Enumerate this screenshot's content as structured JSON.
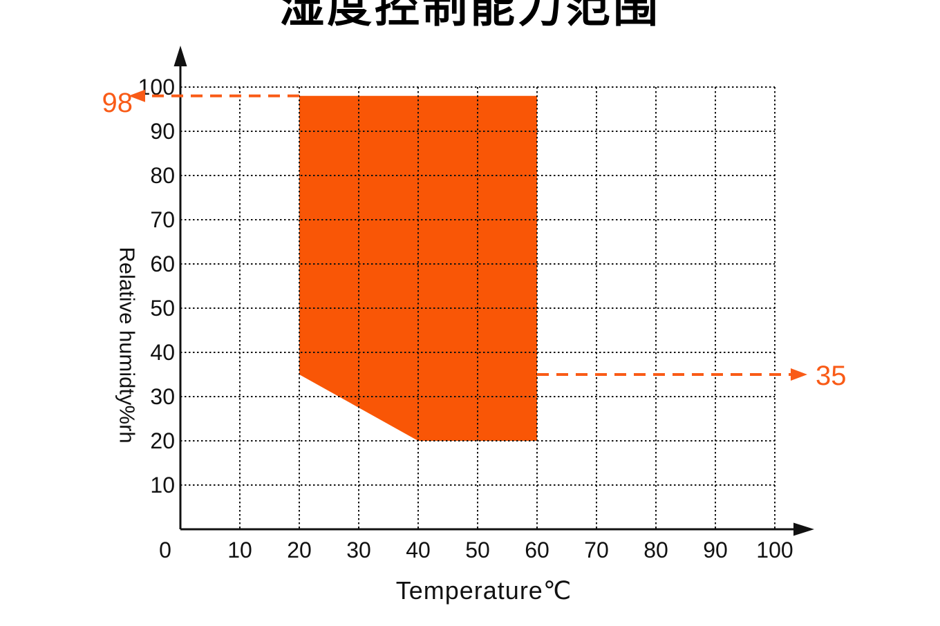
{
  "title": "湿度控制能力范围",
  "chart_data": {
    "type": "area",
    "title": "湿度控制能力范围",
    "xlabel": "Temperature℃",
    "ylabel": "Relative humidty%rh",
    "xlim": [
      0,
      100
    ],
    "ylim": [
      0,
      100
    ],
    "x_ticks": [
      0,
      10,
      20,
      30,
      40,
      50,
      60,
      70,
      80,
      90,
      100
    ],
    "y_ticks": [
      10,
      20,
      30,
      40,
      50,
      60,
      70,
      80,
      90,
      100
    ],
    "grid": "dotted",
    "legend": "none",
    "region": {
      "name": "humidity-control-range",
      "points": [
        [
          20,
          98
        ],
        [
          60,
          98
        ],
        [
          60,
          20
        ],
        [
          40,
          20
        ],
        [
          20,
          35
        ]
      ]
    },
    "annotations": [
      {
        "label": "98",
        "value": 98,
        "from": [
          20,
          98
        ],
        "direction": "left"
      },
      {
        "label": "35",
        "value": 35,
        "from": [
          60,
          35
        ],
        "direction": "right"
      }
    ],
    "colors": {
      "fill": "#F95606",
      "annotation": "#F95B17",
      "axis": "#111111",
      "grid": "#111111",
      "text": "#111111"
    }
  }
}
